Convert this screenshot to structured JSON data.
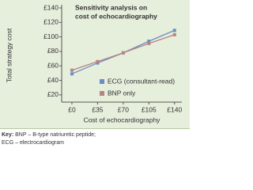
{
  "chart_data": {
    "type": "line",
    "title": "Sensitivity analysis on cost of echocardiography",
    "title_lines": [
      "Sensitivity analysis on",
      "cost of echocardiography"
    ],
    "x_label": "Cost of echocardiography",
    "y_label": "Total strategy cost",
    "x": [
      0,
      35,
      70,
      105,
      140
    ],
    "series": [
      {
        "name": "ECG (consultant-read)",
        "color": "#6a8fc4",
        "values": [
          49,
          64,
          78,
          94,
          109
        ]
      },
      {
        "name": "BNP only",
        "color": "#b88480",
        "values": [
          54,
          66,
          78,
          91,
          103
        ]
      }
    ],
    "xlim": [
      -14,
      150
    ],
    "ylim": [
      10,
      140
    ],
    "xticks": [
      {
        "value": 0,
        "label": "£0"
      },
      {
        "value": 35,
        "label": "£35"
      },
      {
        "value": 70,
        "label": "£70"
      },
      {
        "value": 105,
        "label": "£105"
      },
      {
        "value": 140,
        "label": "£140"
      }
    ],
    "yticks": [
      {
        "value": 20,
        "label": "£20"
      },
      {
        "value": 40,
        "label": "£40"
      },
      {
        "value": 60,
        "label": "£60"
      },
      {
        "value": 80,
        "label": "£80"
      },
      {
        "value": 100,
        "label": "£100"
      },
      {
        "value": 120,
        "label": "£120"
      },
      {
        "value": 140,
        "label": "£140"
      }
    ],
    "legend": "lower right"
  },
  "footer": {
    "key_label": "Key:",
    "line1": "BNP – B-type natriuretic peptide;",
    "line2": "ECG – electrocardiogram"
  }
}
